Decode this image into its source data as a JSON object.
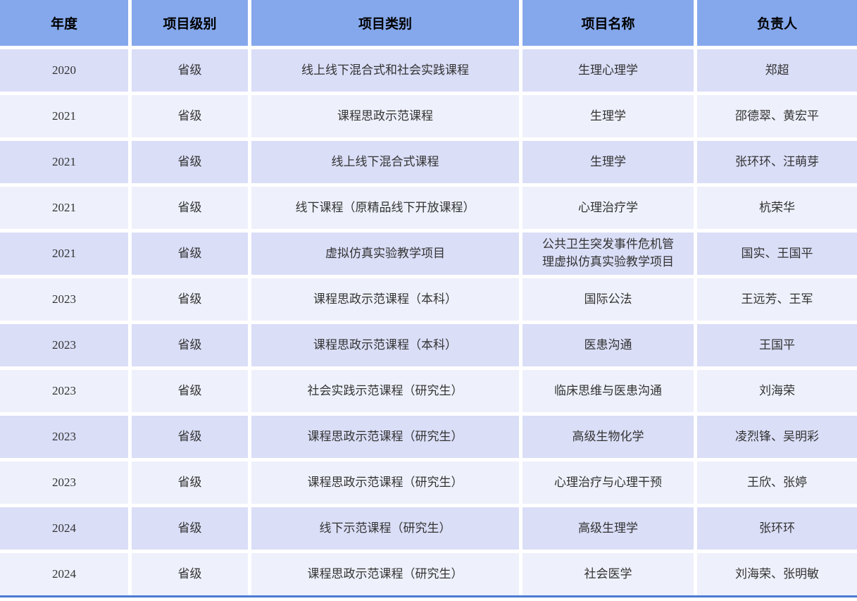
{
  "colors": {
    "header_bg": "#85a8ec",
    "row_dark_bg": "#dadef7",
    "row_light_bg": "#eef1fb",
    "gap": "#ffffff",
    "bottom_line": "#4a7ad4",
    "header_text": "#000000",
    "cell_text": "#333333"
  },
  "table": {
    "headers": [
      "年度",
      "项目级别",
      "项目类别",
      "项目名称",
      "负责人"
    ],
    "rows": [
      {
        "year": "2020",
        "level": "省级",
        "category": "线上线下混合式和社会实践课程",
        "name": "生理心理学",
        "leader": "郑超"
      },
      {
        "year": "2021",
        "level": "省级",
        "category": "课程思政示范课程",
        "name": "生理学",
        "leader": "邵德翠、黄宏平"
      },
      {
        "year": "2021",
        "level": "省级",
        "category": "线上线下混合式课程",
        "name": "生理学",
        "leader": "张环环、汪萌芽"
      },
      {
        "year": "2021",
        "level": "省级",
        "category": "线下课程（原精品线下开放课程）",
        "name": "心理治疗学",
        "leader": "杭荣华"
      },
      {
        "year": "2021",
        "level": "省级",
        "category": "虚拟仿真实验教学项目",
        "name": "公共卫生突发事件危机管理虚拟仿真实验教学项目",
        "leader": "国实、王国平"
      },
      {
        "year": "2023",
        "level": "省级",
        "category": "课程思政示范课程（本科）",
        "name": "国际公法",
        "leader": "王远芳、王军"
      },
      {
        "year": "2023",
        "level": "省级",
        "category": "课程思政示范课程（本科）",
        "name": "医患沟通",
        "leader": "王国平"
      },
      {
        "year": "2023",
        "level": "省级",
        "category": "社会实践示范课程（研究生）",
        "name": "临床思维与医患沟通",
        "leader": "刘海荣"
      },
      {
        "year": "2023",
        "level": "省级",
        "category": "课程思政示范课程（研究生）",
        "name": "高级生物化学",
        "leader": "凌烈锋、吴明彩"
      },
      {
        "year": "2023",
        "level": "省级",
        "category": "课程思政示范课程（研究生）",
        "name": "心理治疗与心理干预",
        "leader": "王欣、张婷"
      },
      {
        "year": "2024",
        "level": "省级",
        "category": "线下示范课程（研究生）",
        "name": "高级生理学",
        "leader": "张环环"
      },
      {
        "year": "2024",
        "level": "省级",
        "category": "课程思政示范课程（研究生）",
        "name": "社会医学",
        "leader": "刘海荣、张明敏"
      }
    ]
  }
}
